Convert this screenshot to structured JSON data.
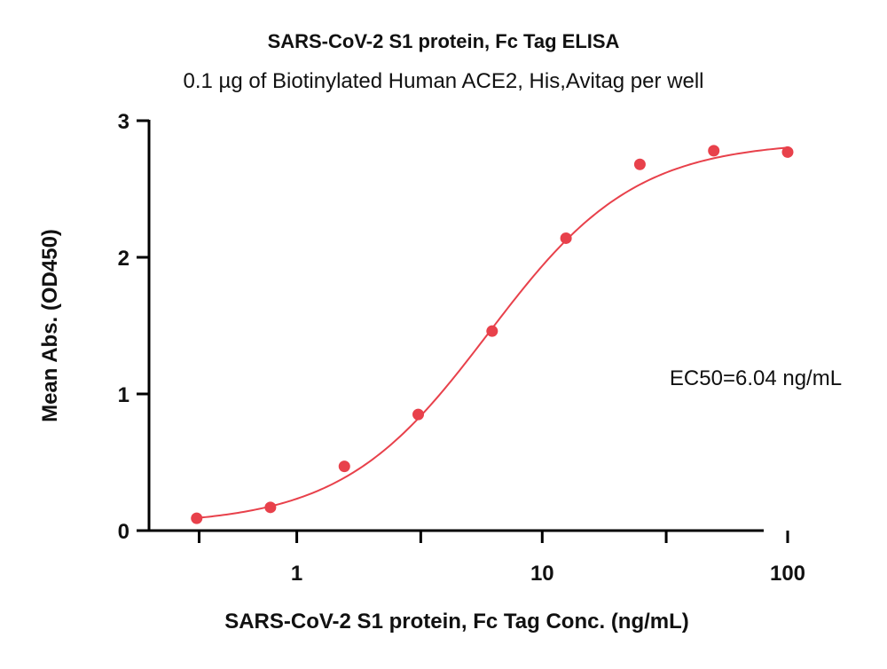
{
  "chart_data": {
    "type": "scatter",
    "title": "SARS-CoV-2 S1 protein, Fc Tag ELISA",
    "subtitle": "0.1 µg of Biotinylated Human ACE2, His,Avitag per well",
    "xlabel": "SARS-CoV-2 S1 protein, Fc Tag Conc. (ng/mL)",
    "ylabel": "Mean Abs. (OD450)",
    "xscale": "log",
    "xlim": [
      0.25,
      100
    ],
    "ylim": [
      0,
      3
    ],
    "x_ticks": [
      1,
      10,
      100
    ],
    "x_tick_labels": [
      "1",
      "10",
      "100"
    ],
    "y_ticks": [
      0,
      1,
      2,
      3
    ],
    "y_tick_labels": [
      "0",
      "1",
      "2",
      "3"
    ],
    "marker_color": "#e8414b",
    "curve_color": "#e8414b",
    "points": {
      "x": [
        0.391,
        0.781,
        1.563,
        3.125,
        6.25,
        12.5,
        25,
        50,
        100
      ],
      "y": [
        0.09,
        0.17,
        0.47,
        0.85,
        1.46,
        2.14,
        2.68,
        2.78,
        2.77
      ]
    },
    "fit": {
      "model": "4PL",
      "bottom": 0.04,
      "top": 2.85,
      "ec50": 6.04,
      "hill": 1.45
    },
    "annotation": "EC50=6.04 ng/mL",
    "grid": false,
    "legend": "none"
  }
}
